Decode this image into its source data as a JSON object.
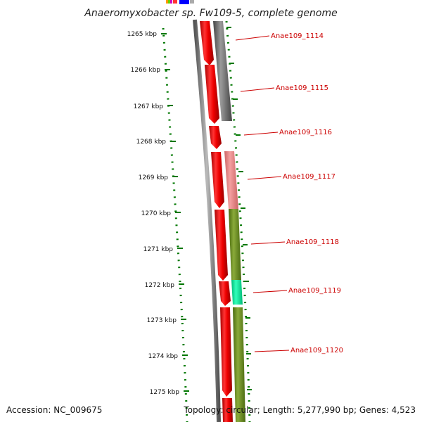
{
  "title": "Anaeromyxobacter sp. Fw109-5, complete genome",
  "footer": {
    "accession": "Accession: NC_009675",
    "summary": "Topology: circular; Length: 5,277,990 bp; Genes: 4,523"
  },
  "ruler": {
    "ticks": [
      "1265 kbp",
      "1266 kbp",
      "1267 kbp",
      "1268 kbp",
      "1269 kbp",
      "1270 kbp",
      "1271 kbp",
      "1272 kbp",
      "1273 kbp",
      "1274 kbp",
      "1275 kbp"
    ]
  },
  "genes": [
    {
      "label": "Anae109_1114"
    },
    {
      "label": "Anae109_1115"
    },
    {
      "label": "Anae109_1116"
    },
    {
      "label": "Anae109_1117"
    },
    {
      "label": "Anae109_1118"
    },
    {
      "label": "Anae109_1119"
    },
    {
      "label": "Anae109_1120"
    }
  ],
  "colors": {
    "forward_strand": "#ff0000",
    "backbone": "#888888",
    "cog_gray": "#777777",
    "cog_pink": "#ee8888",
    "cog_olive": "#6b8e23",
    "cog_teal": "#00ee99",
    "ruler": "#007700",
    "label": "#cc0000"
  }
}
